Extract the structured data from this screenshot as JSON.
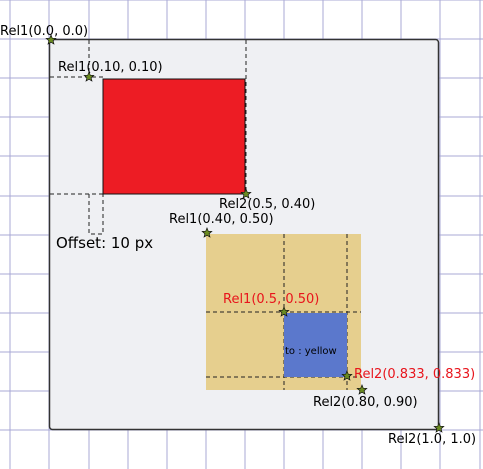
{
  "labels": {
    "rel1_origin": "Rel1(0.0, 0.0)",
    "rel1_red": "Rel1(0.10, 0.10)",
    "rel2_red": "Rel2(0.5, 0.40)",
    "offset": "Offset: 10 px",
    "rel1_tan": "Rel1(0.40, 0.50)",
    "rel1_blue": "Rel1(0.5, 0.50)",
    "blue_text": "to : yellow",
    "rel2_blue": "Rel2(0.833, 0.833)",
    "rel2_tan": "Rel2(0.80, 0.90)",
    "rel2_container": "Rel2(1.0, 1.0)"
  },
  "colors": {
    "grid": "#a9a9d6",
    "container_fill": "#eff0f3",
    "container_stroke": "#333333",
    "red_fill": "#ed1c24",
    "tan_fill": "#e6cf8e",
    "blue_fill": "#5b78cc",
    "star_fill": "#6b8c21",
    "highlight_text": "#e8141c"
  }
}
